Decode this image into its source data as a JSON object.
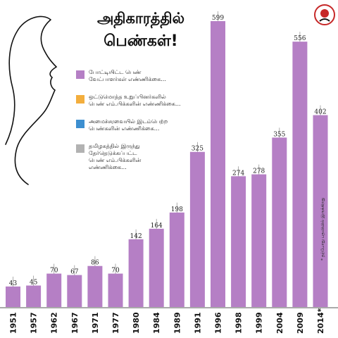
{
  "title_line1": "அதிகாரத்தில்",
  "title_line2": "பெண்கள்!",
  "legend": [
    {
      "label": "போட்டியிட்ட பெண்\nவேட்பாளர்கள் எண்ணிக்கை...",
      "color": "#b57fc5"
    },
    {
      "label": "ஒட்டுமொத்த உறுப்பினர்களில்\nபெண் எம்.பிக்களின் எண்ணிக்கை...",
      "color": "#f3ae3d"
    },
    {
      "label": "அமைச்சரவையில் இடம்பெற்ற\nபெண்களின் எண்ணிக்கை...",
      "color": "#3d8fd0"
    },
    {
      "label": "தமிழகத்தில் இருந்து\nதேர்தெடுக்கப்பட்ட\nபெண் எம்.பிக்களின்\nஎண்ணிக்கை...",
      "color": "#b2b2b2"
    }
  ],
  "footnote": "* தற்போது பதவியில் இருக்கிறது",
  "chart_data": {
    "type": "bar",
    "categories": [
      "1951",
      "1957",
      "1962",
      "1967",
      "1971",
      "1977",
      "1980",
      "1984",
      "1989",
      "1991",
      "1996",
      "1998",
      "1999",
      "2004",
      "2009",
      "2014*"
    ],
    "series": [
      {
        "name": "போட்டியிட்ட பெண் வேட்பாளர்கள் எண்ணிக்கை...",
        "values": [
          43,
          45,
          70,
          67,
          86,
          70,
          142,
          164,
          198,
          325,
          599,
          274,
          278,
          355,
          556,
          402
        ]
      }
    ],
    "ylim": [
      0,
      599
    ],
    "bar_color": "#b57fc5",
    "line_color": "#9a9a9a"
  }
}
